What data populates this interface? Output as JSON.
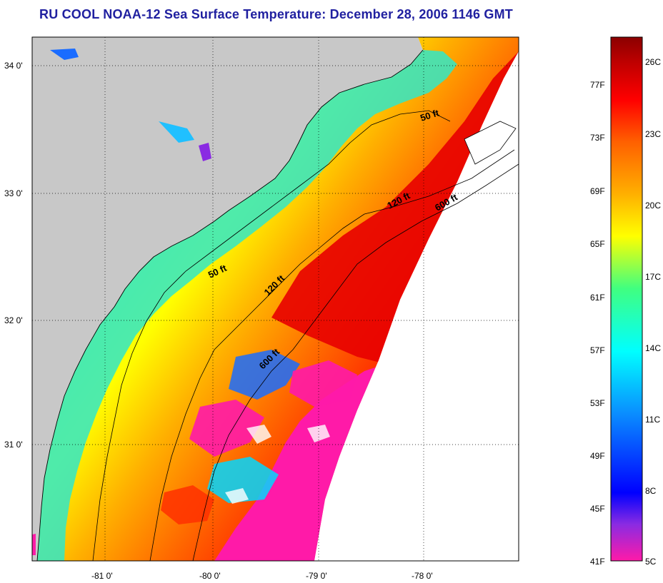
{
  "title": "RU COOL  NOAA-12  Sea Surface Temperature:  December 28, 2006 1146 GMT",
  "map": {
    "lat_labels": [
      "34 0'",
      "33 0'",
      "32 0'",
      "31 0'"
    ],
    "lon_labels": [
      "-81 0'",
      "-80 0'",
      "-79 0'",
      "-78 0'"
    ],
    "contour_labels": [
      {
        "text": "50 ft",
        "id": "contour-50ft-north"
      },
      {
        "text": "120 ft",
        "id": "contour-120ft-north"
      },
      {
        "text": "600 ft",
        "id": "contour-600ft-north"
      },
      {
        "text": "50 ft",
        "id": "contour-50ft-south"
      },
      {
        "text": "120 ft",
        "id": "contour-120ft-south"
      },
      {
        "text": "600 ft",
        "id": "contour-600ft-south"
      }
    ],
    "colors": {
      "land": "#c8c8c8",
      "no_data": "#ffffff",
      "coastline": "#000000"
    }
  },
  "colorbar": {
    "fahrenheit": [
      "77F",
      "73F",
      "69F",
      "65F",
      "61F",
      "57F",
      "53F",
      "49F",
      "45F",
      "41F"
    ],
    "celsius": [
      "26C",
      "23C",
      "20C",
      "17C",
      "14C",
      "11C",
      "8C",
      "5C"
    ],
    "colors": [
      "#ff1aa8",
      "#8a2be2",
      "#0000ff",
      "#0a8cff",
      "#00ffff",
      "#40ff80",
      "#ffff00",
      "#ffb000",
      "#ff6000",
      "#ff0000",
      "#c00000",
      "#8b0000"
    ]
  }
}
